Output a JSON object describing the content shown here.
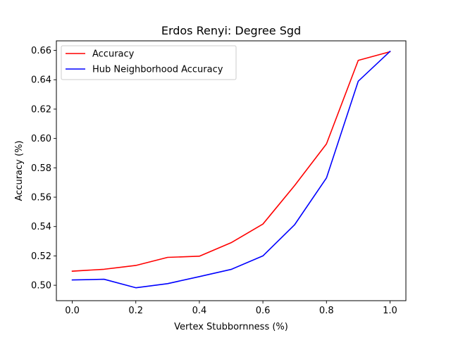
{
  "chart_data": {
    "type": "line",
    "title": "Erdos Renyi: Degree Sgd",
    "xlabel": "Vertex Stubbornness (%)",
    "ylabel": "Accuracy (%)",
    "x": [
      0.0,
      0.1,
      0.2,
      0.3,
      0.4,
      0.5,
      0.6,
      0.7,
      0.8,
      0.9,
      1.0
    ],
    "xlim": [
      -0.05,
      1.05
    ],
    "ylim": [
      0.4895,
      0.6665
    ],
    "xticks": [
      0.0,
      0.2,
      0.4,
      0.6,
      0.8,
      1.0
    ],
    "xtick_labels": [
      "0.0",
      "0.2",
      "0.4",
      "0.6",
      "0.8",
      "1.0"
    ],
    "yticks": [
      0.5,
      0.52,
      0.54,
      0.56,
      0.58,
      0.6,
      0.62,
      0.64,
      0.66
    ],
    "ytick_labels": [
      "0.50",
      "0.52",
      "0.54",
      "0.56",
      "0.58",
      "0.60",
      "0.62",
      "0.64",
      "0.66"
    ],
    "grid": false,
    "legend_position": "top-left",
    "series": [
      {
        "name": "Accuracy",
        "color": "#ff0000",
        "values": [
          0.5096,
          0.5109,
          0.5135,
          0.519,
          0.5198,
          0.529,
          0.5417,
          0.568,
          0.5963,
          0.6532,
          0.6591
        ]
      },
      {
        "name": "Hub Neighborhood Accuracy",
        "color": "#0000ff",
        "values": [
          0.5036,
          0.5041,
          0.4983,
          0.5011,
          0.5059,
          0.5108,
          0.52,
          0.5413,
          0.5731,
          0.639,
          0.6593
        ]
      }
    ]
  }
}
